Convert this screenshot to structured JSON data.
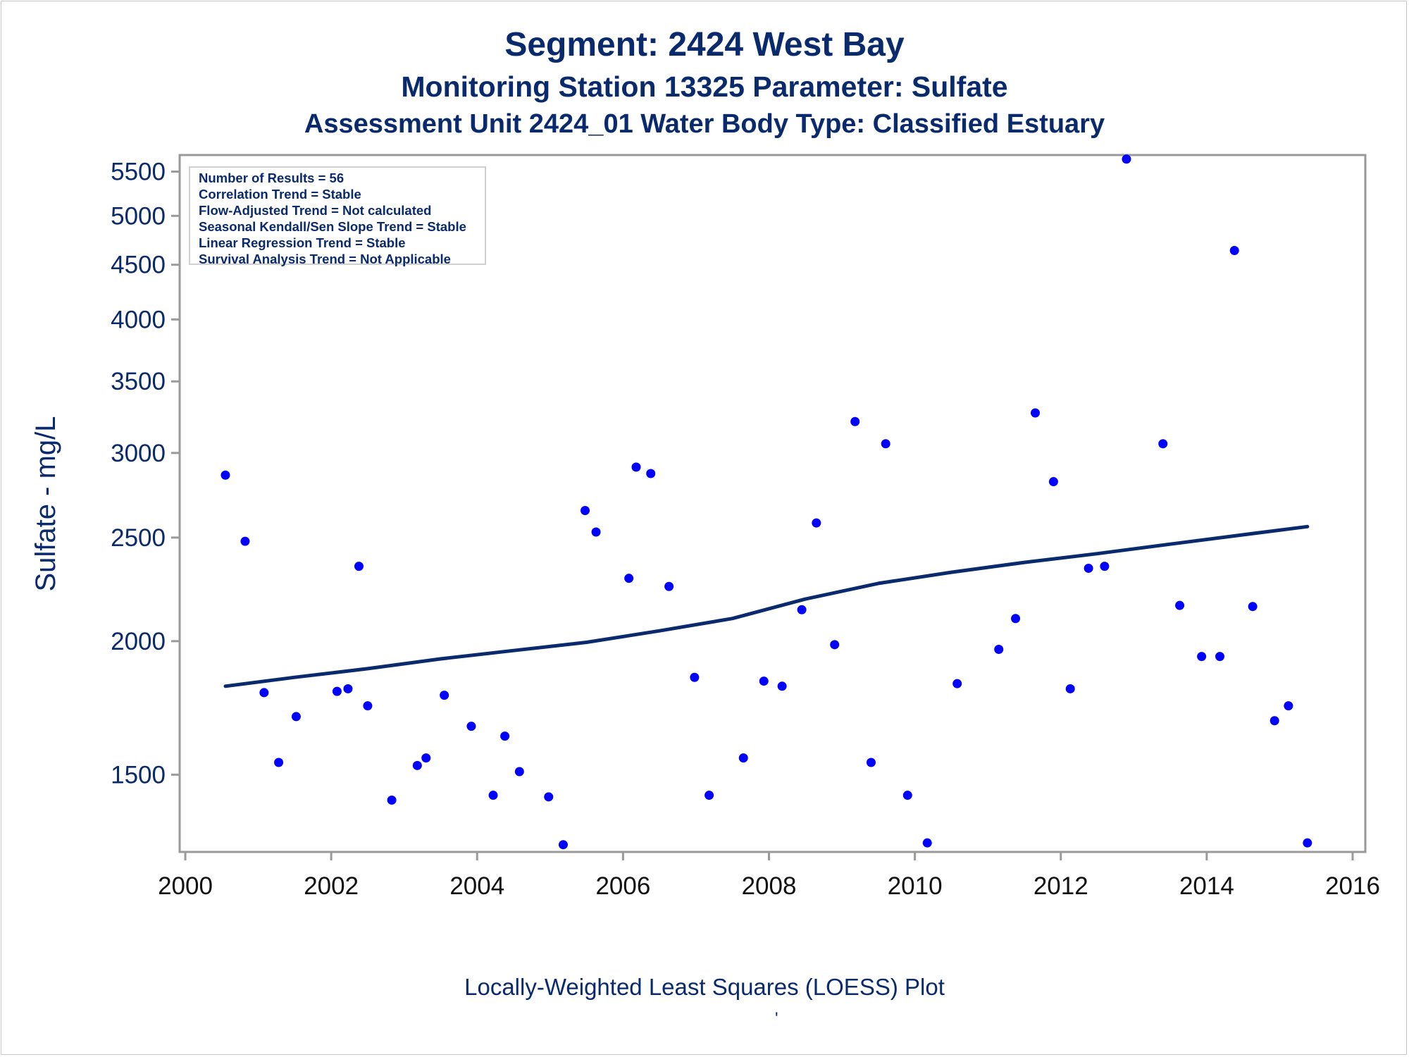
{
  "titles": {
    "line1": "Segment: 2424  West Bay",
    "line2": "Monitoring Station 13325 Parameter: Sulfate",
    "line3": "Assessment Unit 2424_01   Water Body Type: Classified Estuary"
  },
  "inset_box": [
    "Number of Results = 56",
    "Correlation Trend = Stable",
    "Flow-Adjusted Trend = Not calculated",
    "Seasonal Kendall/Sen Slope Trend = Stable",
    "Linear Regression Trend = Stable",
    "Survival Analysis Trend = Not Applicable"
  ],
  "footnote": "Locally-Weighted Least Squares (LOESS) Plot",
  "footnote_mark": "'",
  "colors": {
    "title": "#0a2a6e",
    "points": "#0000ff",
    "trend_line": "#0a2a6e",
    "axis": "#9a9a9a"
  },
  "chart_data": {
    "type": "scatter",
    "ylabel": "Sulfate - mg/L",
    "xlabel": "",
    "y_scale": "log",
    "xlim": [
      2000,
      2016
    ],
    "ylim": [
      1270,
      5700
    ],
    "x_ticks": [
      2000,
      2002,
      2004,
      2006,
      2008,
      2010,
      2012,
      2014,
      2016
    ],
    "y_ticks": [
      1500,
      2000,
      2500,
      3000,
      3500,
      4000,
      4500,
      5000,
      5500
    ],
    "grid": false,
    "legend_position": "top-left",
    "series": [
      {
        "type": "scatter",
        "points": [
          [
            2000.55,
            2860
          ],
          [
            2000.82,
            2480
          ],
          [
            2001.08,
            1790
          ],
          [
            2001.28,
            1540
          ],
          [
            2001.52,
            1700
          ],
          [
            2002.08,
            1795
          ],
          [
            2002.23,
            1805
          ],
          [
            2002.38,
            2350
          ],
          [
            2002.5,
            1740
          ],
          [
            2002.83,
            1420
          ],
          [
            2003.18,
            1530
          ],
          [
            2003.3,
            1555
          ],
          [
            2003.55,
            1780
          ],
          [
            2003.92,
            1665
          ],
          [
            2004.22,
            1435
          ],
          [
            2004.38,
            1630
          ],
          [
            2004.58,
            1510
          ],
          [
            2004.98,
            1430
          ],
          [
            2005.18,
            1290
          ],
          [
            2005.48,
            2650
          ],
          [
            2005.63,
            2530
          ],
          [
            2006.08,
            2290
          ],
          [
            2006.18,
            2910
          ],
          [
            2006.38,
            2870
          ],
          [
            2006.63,
            2250
          ],
          [
            2006.98,
            1850
          ],
          [
            2007.18,
            1435
          ],
          [
            2007.65,
            1555
          ],
          [
            2007.93,
            1835
          ],
          [
            2008.18,
            1815
          ],
          [
            2008.45,
            2140
          ],
          [
            2008.65,
            2580
          ],
          [
            2008.9,
            1985
          ],
          [
            2009.18,
            3210
          ],
          [
            2009.4,
            1540
          ],
          [
            2009.6,
            3060
          ],
          [
            2009.9,
            1435
          ],
          [
            2010.17,
            1295
          ],
          [
            2010.58,
            1825
          ],
          [
            2011.15,
            1965
          ],
          [
            2011.38,
            2100
          ],
          [
            2011.65,
            3270
          ],
          [
            2011.9,
            2820
          ],
          [
            2012.13,
            1805
          ],
          [
            2012.38,
            2340
          ],
          [
            2012.6,
            2350
          ],
          [
            2012.9,
            5650
          ],
          [
            2013.4,
            3060
          ],
          [
            2013.63,
            2160
          ],
          [
            2013.93,
            1935
          ],
          [
            2014.18,
            1935
          ],
          [
            2014.38,
            4640
          ],
          [
            2014.63,
            2155
          ],
          [
            2014.93,
            1685
          ],
          [
            2015.12,
            1740
          ],
          [
            2015.38,
            1295
          ]
        ]
      },
      {
        "type": "line",
        "points": [
          [
            2000.55,
            1815
          ],
          [
            2001.5,
            1850
          ],
          [
            2002.5,
            1885
          ],
          [
            2003.5,
            1925
          ],
          [
            2004.5,
            1960
          ],
          [
            2005.5,
            1995
          ],
          [
            2006.5,
            2045
          ],
          [
            2007.5,
            2100
          ],
          [
            2008.5,
            2190
          ],
          [
            2009.5,
            2265
          ],
          [
            2010.5,
            2320
          ],
          [
            2011.5,
            2370
          ],
          [
            2012.5,
            2415
          ],
          [
            2013.5,
            2465
          ],
          [
            2014.5,
            2515
          ],
          [
            2015.38,
            2560
          ]
        ]
      }
    ]
  }
}
